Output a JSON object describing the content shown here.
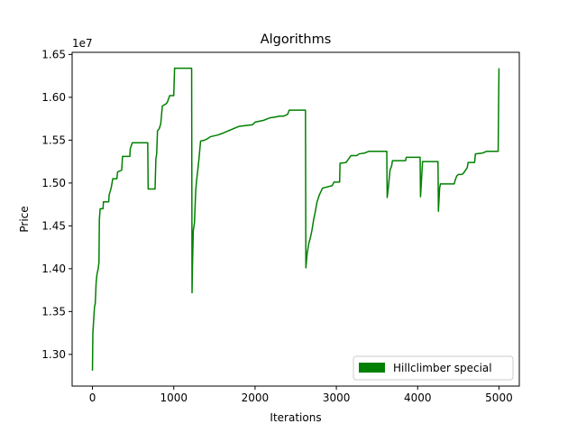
{
  "chart_data": {
    "type": "line",
    "title": "Algorithms",
    "xlabel": "Iterations",
    "ylabel": "Price",
    "y_offset_label": "1e7",
    "xlim": [
      -250,
      5250
    ],
    "ylim": [
      1.263,
      1.6525
    ],
    "x_ticks": [
      0,
      1000,
      2000,
      3000,
      4000,
      5000
    ],
    "x_tick_labels": [
      "0",
      "1000",
      "2000",
      "3000",
      "4000",
      "5000"
    ],
    "y_ticks": [
      1.3,
      1.35,
      1.4,
      1.45,
      1.5,
      1.55,
      1.6,
      1.65
    ],
    "y_tick_labels": [
      "1.30",
      "1.35",
      "1.40",
      "1.45",
      "1.50",
      "1.55",
      "1.60",
      "1.65"
    ],
    "grid": false,
    "legend_position": "lower-right",
    "series": [
      {
        "name": "Hillclimber special",
        "color": "#008000",
        "points": [
          [
            0,
            1.281
          ],
          [
            5,
            1.325
          ],
          [
            15,
            1.34
          ],
          [
            25,
            1.355
          ],
          [
            35,
            1.36
          ],
          [
            45,
            1.383
          ],
          [
            55,
            1.393
          ],
          [
            70,
            1.4
          ],
          [
            80,
            1.407
          ],
          [
            85,
            1.457
          ],
          [
            95,
            1.47
          ],
          [
            130,
            1.47
          ],
          [
            135,
            1.478
          ],
          [
            200,
            1.478
          ],
          [
            205,
            1.486
          ],
          [
            230,
            1.494
          ],
          [
            250,
            1.505
          ],
          [
            300,
            1.505
          ],
          [
            310,
            1.513
          ],
          [
            360,
            1.515
          ],
          [
            370,
            1.531
          ],
          [
            460,
            1.531
          ],
          [
            465,
            1.54
          ],
          [
            490,
            1.547
          ],
          [
            680,
            1.547
          ],
          [
            685,
            1.493
          ],
          [
            770,
            1.493
          ],
          [
            780,
            1.528
          ],
          [
            790,
            1.534
          ],
          [
            800,
            1.561
          ],
          [
            820,
            1.563
          ],
          [
            840,
            1.569
          ],
          [
            860,
            1.59
          ],
          [
            900,
            1.592
          ],
          [
            920,
            1.594
          ],
          [
            950,
            1.602
          ],
          [
            1000,
            1.602
          ],
          [
            1010,
            1.634
          ],
          [
            1220,
            1.634
          ],
          [
            1225,
            1.372
          ],
          [
            1230,
            1.402
          ],
          [
            1240,
            1.444
          ],
          [
            1255,
            1.454
          ],
          [
            1270,
            1.491
          ],
          [
            1280,
            1.502
          ],
          [
            1300,
            1.519
          ],
          [
            1310,
            1.528
          ],
          [
            1330,
            1.549
          ],
          [
            1380,
            1.55
          ],
          [
            1420,
            1.552
          ],
          [
            1450,
            1.554
          ],
          [
            1540,
            1.556
          ],
          [
            1600,
            1.558
          ],
          [
            1650,
            1.56
          ],
          [
            1700,
            1.562
          ],
          [
            1800,
            1.566
          ],
          [
            1970,
            1.568
          ],
          [
            2000,
            1.571
          ],
          [
            2100,
            1.573
          ],
          [
            2180,
            1.576
          ],
          [
            2250,
            1.577
          ],
          [
            2300,
            1.578
          ],
          [
            2350,
            1.578
          ],
          [
            2400,
            1.58
          ],
          [
            2420,
            1.585
          ],
          [
            2620,
            1.585
          ],
          [
            2625,
            1.401
          ],
          [
            2640,
            1.417
          ],
          [
            2660,
            1.429
          ],
          [
            2680,
            1.436
          ],
          [
            2700,
            1.445
          ],
          [
            2720,
            1.457
          ],
          [
            2740,
            1.466
          ],
          [
            2760,
            1.477
          ],
          [
            2790,
            1.486
          ],
          [
            2830,
            1.494
          ],
          [
            2950,
            1.497
          ],
          [
            2970,
            1.501
          ],
          [
            3040,
            1.501
          ],
          [
            3045,
            1.523
          ],
          [
            3120,
            1.524
          ],
          [
            3180,
            1.532
          ],
          [
            3250,
            1.532
          ],
          [
            3280,
            1.534
          ],
          [
            3350,
            1.535
          ],
          [
            3400,
            1.537
          ],
          [
            3620,
            1.537
          ],
          [
            3625,
            1.483
          ],
          [
            3640,
            1.495
          ],
          [
            3660,
            1.515
          ],
          [
            3680,
            1.52
          ],
          [
            3690,
            1.526
          ],
          [
            3850,
            1.526
          ],
          [
            3860,
            1.53
          ],
          [
            4030,
            1.53
          ],
          [
            4035,
            1.484
          ],
          [
            4045,
            1.5
          ],
          [
            4060,
            1.525
          ],
          [
            4250,
            1.525
          ],
          [
            4255,
            1.467
          ],
          [
            4270,
            1.494
          ],
          [
            4280,
            1.499
          ],
          [
            4450,
            1.499
          ],
          [
            4460,
            1.503
          ],
          [
            4480,
            1.508
          ],
          [
            4500,
            1.51
          ],
          [
            4540,
            1.51
          ],
          [
            4560,
            1.511
          ],
          [
            4610,
            1.518
          ],
          [
            4620,
            1.524
          ],
          [
            4700,
            1.524
          ],
          [
            4710,
            1.534
          ],
          [
            4800,
            1.535
          ],
          [
            4850,
            1.537
          ],
          [
            4990,
            1.537
          ],
          [
            5000,
            1.634
          ]
        ]
      }
    ]
  }
}
